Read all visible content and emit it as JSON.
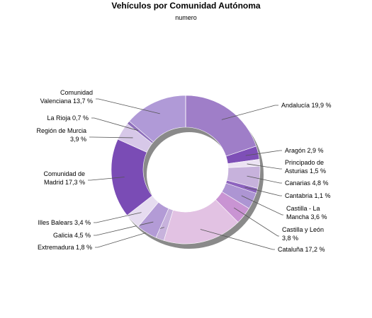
{
  "chart_data": {
    "type": "pie",
    "subtype": "donut",
    "title": "Vehículos por Comunidad Autónoma",
    "subtitle": "numero",
    "legend": "none",
    "series": [
      {
        "name": "numero",
        "slices": [
          {
            "label": "Andalucía",
            "value": 19.9,
            "text": [
              "Andalucía 19,9 %"
            ],
            "color": "#9f7ec8"
          },
          {
            "label": "Aragón",
            "value": 2.9,
            "text": [
              "Aragón 2,9 %"
            ],
            "color": "#7e4fb7"
          },
          {
            "label": "Principado de Asturias",
            "value": 1.5,
            "text": [
              "Principado de",
              "Asturias 1,5 %"
            ],
            "color": "#ece3f3"
          },
          {
            "label": "Canarias",
            "value": 4.8,
            "text": [
              "Canarias 4,8 %"
            ],
            "color": "#c7b2dc"
          },
          {
            "label": "Cantabria",
            "value": 1.1,
            "text": [
              "Cantabria 1,1 %"
            ],
            "color": "#8d63be"
          },
          {
            "label": "Castilla - La Mancha",
            "value": 3.6,
            "text": [
              "Castilla - La",
              "Mancha 3,6 %"
            ],
            "color": "#ad95d3"
          },
          {
            "label": "Castilla y León",
            "value": 3.8,
            "text": [
              "Castilla y León",
              "3,8 %"
            ],
            "color": "#c994d3"
          },
          {
            "label": "Cataluña",
            "value": 17.2,
            "text": [
              "Cataluña 17,2 %"
            ],
            "color": "#e2c2e3"
          },
          {
            "label": "Extremadura",
            "value": 1.8,
            "text": [
              "Extremadura 1,8 %"
            ],
            "color": "#c7b2dc"
          },
          {
            "label": "Galicia",
            "value": 4.5,
            "text": [
              "Galicia 4,5 %"
            ],
            "color": "#b39bd6"
          },
          {
            "label": "Illes Balears",
            "value": 3.4,
            "text": [
              "Illes Balears 3,4 %"
            ],
            "color": "#e6dcf0"
          },
          {
            "label": "Comunidad de Madrid",
            "value": 17.3,
            "text": [
              "Comunidad de",
              "Madrid 17,3 %"
            ],
            "color": "#7a4cb5"
          },
          {
            "label": "Región de Murcia",
            "value": 3.9,
            "text": [
              "Región de Murcia",
              "3,9 %"
            ],
            "color": "#d7c8e8"
          },
          {
            "label": "La Rioja",
            "value": 0.7,
            "text": [
              "La Rioja 0,7 %"
            ],
            "color": "#8f70bc"
          },
          {
            "label": "Comunidad Valenciana",
            "value": 13.7,
            "text": [
              "Comunidad",
              "Valenciana 13,7 %"
            ],
            "color": "#b09ad7"
          }
        ]
      }
    ]
  }
}
